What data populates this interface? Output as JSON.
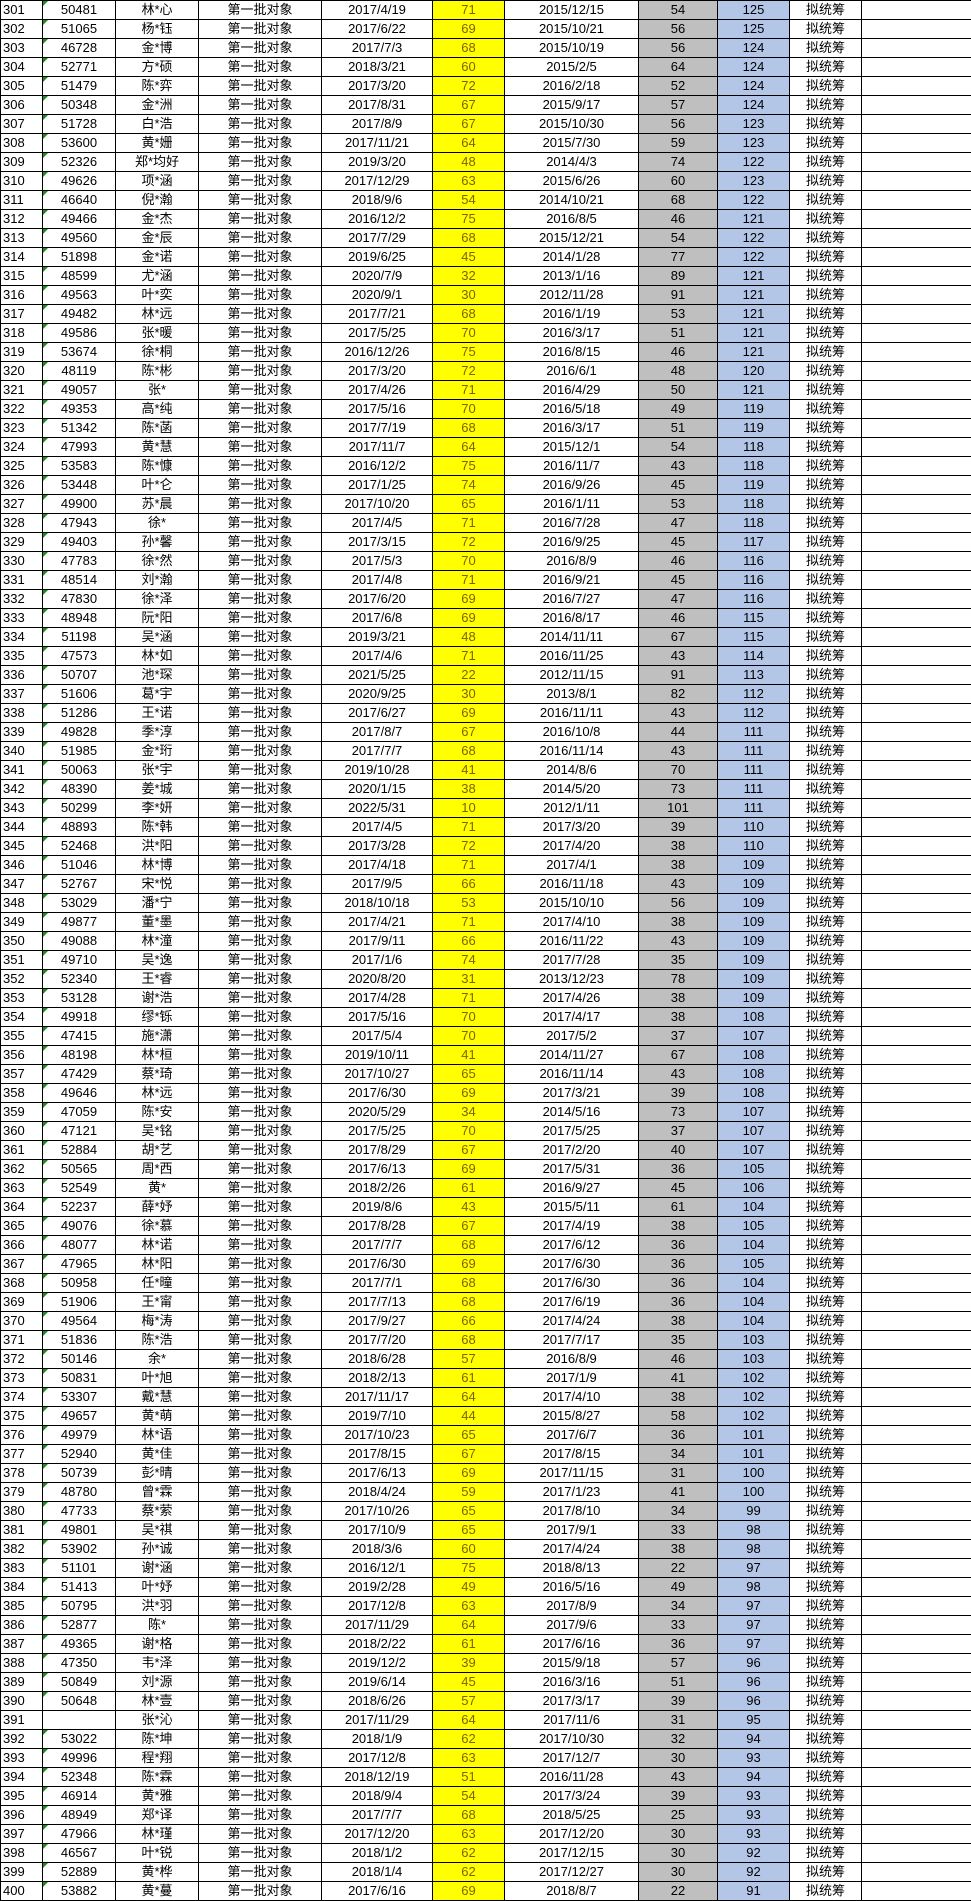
{
  "batch_label": "第一批对象",
  "status_label": "拟统筹",
  "colors": {
    "highlight_yellow": "#ffff00",
    "highlight_gray": "#bfbfbf",
    "highlight_blue": "#b4c6e7",
    "yellow_text": "#806000",
    "text_number_flag": "#1e8c1e"
  },
  "rows": [
    [
      "301",
      "50481",
      "林*心",
      "2017/4/19",
      "71",
      "2015/12/15",
      "54",
      "125"
    ],
    [
      "302",
      "51065",
      "杨*钰",
      "2017/6/22",
      "69",
      "2015/10/21",
      "56",
      "125"
    ],
    [
      "303",
      "46728",
      "金*博",
      "2017/7/3",
      "68",
      "2015/10/19",
      "56",
      "124"
    ],
    [
      "304",
      "52771",
      "方*硕",
      "2018/3/21",
      "60",
      "2015/2/5",
      "64",
      "124"
    ],
    [
      "305",
      "51479",
      "陈*弈",
      "2017/3/20",
      "72",
      "2016/2/18",
      "52",
      "124"
    ],
    [
      "306",
      "50348",
      "金*洲",
      "2017/8/31",
      "67",
      "2015/9/17",
      "57",
      "124"
    ],
    [
      "307",
      "51728",
      "白*浩",
      "2017/8/9",
      "67",
      "2015/10/30",
      "56",
      "123"
    ],
    [
      "308",
      "53600",
      "黄*姗",
      "2017/11/21",
      "64",
      "2015/7/30",
      "59",
      "123"
    ],
    [
      "309",
      "52326",
      "郑*均好",
      "2019/3/20",
      "48",
      "2014/4/3",
      "74",
      "122"
    ],
    [
      "310",
      "49626",
      "项*涵",
      "2017/12/29",
      "63",
      "2015/6/26",
      "60",
      "123"
    ],
    [
      "311",
      "46640",
      "倪*瀚",
      "2018/9/6",
      "54",
      "2014/10/21",
      "68",
      "122"
    ],
    [
      "312",
      "49466",
      "金*杰",
      "2016/12/2",
      "75",
      "2016/8/5",
      "46",
      "121"
    ],
    [
      "313",
      "49560",
      "金*辰",
      "2017/7/29",
      "68",
      "2015/12/21",
      "54",
      "122"
    ],
    [
      "314",
      "51898",
      "金*诺",
      "2019/6/25",
      "45",
      "2014/1/28",
      "77",
      "122"
    ],
    [
      "315",
      "48599",
      "尤*涵",
      "2020/7/9",
      "32",
      "2013/1/16",
      "89",
      "121"
    ],
    [
      "316",
      "49563",
      "叶*奕",
      "2020/9/1",
      "30",
      "2012/11/28",
      "91",
      "121"
    ],
    [
      "317",
      "49482",
      "林*远",
      "2017/7/21",
      "68",
      "2016/1/19",
      "53",
      "121"
    ],
    [
      "318",
      "49586",
      "张*暖",
      "2017/5/25",
      "70",
      "2016/3/17",
      "51",
      "121"
    ],
    [
      "319",
      "53674",
      "徐*桐",
      "2016/12/26",
      "75",
      "2016/8/15",
      "46",
      "121"
    ],
    [
      "320",
      "48119",
      "陈*彬",
      "2017/3/20",
      "72",
      "2016/6/1",
      "48",
      "120"
    ],
    [
      "321",
      "49057",
      "张*",
      "2017/4/26",
      "71",
      "2016/4/29",
      "50",
      "121"
    ],
    [
      "322",
      "49353",
      "高*纯",
      "2017/5/16",
      "70",
      "2016/5/18",
      "49",
      "119"
    ],
    [
      "323",
      "51342",
      "陈*菡",
      "2017/7/19",
      "68",
      "2016/3/17",
      "51",
      "119"
    ],
    [
      "324",
      "47993",
      "黄*慧",
      "2017/11/7",
      "64",
      "2015/12/1",
      "54",
      "118"
    ],
    [
      "325",
      "53583",
      "陈*慷",
      "2016/12/2",
      "75",
      "2016/11/7",
      "43",
      "118"
    ],
    [
      "326",
      "53448",
      "叶*仑",
      "2017/1/25",
      "74",
      "2016/9/26",
      "45",
      "119"
    ],
    [
      "327",
      "49900",
      "苏*晨",
      "2017/10/20",
      "65",
      "2016/1/11",
      "53",
      "118"
    ],
    [
      "328",
      "47943",
      "徐*",
      "2017/4/5",
      "71",
      "2016/7/28",
      "47",
      "118"
    ],
    [
      "329",
      "49403",
      "孙*馨",
      "2017/3/15",
      "72",
      "2016/9/25",
      "45",
      "117"
    ],
    [
      "330",
      "47783",
      "徐*然",
      "2017/5/3",
      "70",
      "2016/8/9",
      "46",
      "116"
    ],
    [
      "331",
      "48514",
      "刘*瀚",
      "2017/4/8",
      "71",
      "2016/9/21",
      "45",
      "116"
    ],
    [
      "332",
      "47830",
      "徐*泽",
      "2017/6/20",
      "69",
      "2016/7/27",
      "47",
      "116"
    ],
    [
      "333",
      "48948",
      "阮*阳",
      "2017/6/8",
      "69",
      "2016/8/17",
      "46",
      "115"
    ],
    [
      "334",
      "51198",
      "吴*涵",
      "2019/3/21",
      "48",
      "2014/11/11",
      "67",
      "115"
    ],
    [
      "335",
      "47573",
      "林*如",
      "2017/4/6",
      "71",
      "2016/11/25",
      "43",
      "114"
    ],
    [
      "336",
      "50707",
      "池*琛",
      "2021/5/25",
      "22",
      "2012/11/15",
      "91",
      "113"
    ],
    [
      "337",
      "51606",
      "葛*宇",
      "2020/9/25",
      "30",
      "2013/8/1",
      "82",
      "112"
    ],
    [
      "338",
      "51286",
      "王*诺",
      "2017/6/27",
      "69",
      "2016/11/11",
      "43",
      "112"
    ],
    [
      "339",
      "49828",
      "季*淳",
      "2017/8/7",
      "67",
      "2016/10/8",
      "44",
      "111"
    ],
    [
      "340",
      "51985",
      "金*珩",
      "2017/7/7",
      "68",
      "2016/11/14",
      "43",
      "111"
    ],
    [
      "341",
      "50063",
      "张*宇",
      "2019/10/28",
      "41",
      "2014/8/6",
      "70",
      "111"
    ],
    [
      "342",
      "48390",
      "姜*城",
      "2020/1/15",
      "38",
      "2014/5/20",
      "73",
      "111"
    ],
    [
      "343",
      "50299",
      "李*妍",
      "2022/5/31",
      "10",
      "2012/1/11",
      "101",
      "111"
    ],
    [
      "344",
      "48893",
      "陈*韩",
      "2017/4/5",
      "71",
      "2017/3/20",
      "39",
      "110"
    ],
    [
      "345",
      "52468",
      "洪*阳",
      "2017/3/28",
      "72",
      "2017/4/20",
      "38",
      "110"
    ],
    [
      "346",
      "51046",
      "林*博",
      "2017/4/18",
      "71",
      "2017/4/1",
      "38",
      "109"
    ],
    [
      "347",
      "52767",
      "宋*悦",
      "2017/9/5",
      "66",
      "2016/11/18",
      "43",
      "109"
    ],
    [
      "348",
      "53029",
      "潘*宁",
      "2018/10/18",
      "53",
      "2015/10/10",
      "56",
      "109"
    ],
    [
      "349",
      "49877",
      "董*墨",
      "2017/4/21",
      "71",
      "2017/4/10",
      "38",
      "109"
    ],
    [
      "350",
      "49088",
      "林*潼",
      "2017/9/11",
      "66",
      "2016/11/22",
      "43",
      "109"
    ],
    [
      "351",
      "49710",
      "吴*逸",
      "2017/1/6",
      "74",
      "2017/7/28",
      "35",
      "109"
    ],
    [
      "352",
      "52340",
      "王*睿",
      "2020/8/20",
      "31",
      "2013/12/23",
      "78",
      "109"
    ],
    [
      "353",
      "53128",
      "谢*浩",
      "2017/4/28",
      "71",
      "2017/4/26",
      "38",
      "109"
    ],
    [
      "354",
      "49918",
      "缪*铄",
      "2017/5/16",
      "70",
      "2017/4/17",
      "38",
      "108"
    ],
    [
      "355",
      "47415",
      "施*潇",
      "2017/5/4",
      "70",
      "2017/5/2",
      "37",
      "107"
    ],
    [
      "356",
      "48198",
      "林*桓",
      "2019/10/11",
      "41",
      "2014/11/27",
      "67",
      "108"
    ],
    [
      "357",
      "47429",
      "蔡*琦",
      "2017/10/27",
      "65",
      "2016/11/14",
      "43",
      "108"
    ],
    [
      "358",
      "49646",
      "林*远",
      "2017/6/30",
      "69",
      "2017/3/21",
      "39",
      "108"
    ],
    [
      "359",
      "47059",
      "陈*安",
      "2020/5/29",
      "34",
      "2014/5/16",
      "73",
      "107"
    ],
    [
      "360",
      "47121",
      "吴*铭",
      "2017/5/25",
      "70",
      "2017/5/25",
      "37",
      "107"
    ],
    [
      "361",
      "52884",
      "胡*艺",
      "2017/8/29",
      "67",
      "2017/2/20",
      "40",
      "107"
    ],
    [
      "362",
      "50565",
      "周*西",
      "2017/6/13",
      "69",
      "2017/5/31",
      "36",
      "105"
    ],
    [
      "363",
      "52549",
      "黄*",
      "2018/2/26",
      "61",
      "2016/9/27",
      "45",
      "106"
    ],
    [
      "364",
      "52237",
      "薛*妤",
      "2019/8/6",
      "43",
      "2015/5/11",
      "61",
      "104"
    ],
    [
      "365",
      "49076",
      "徐*慕",
      "2017/8/28",
      "67",
      "2017/4/19",
      "38",
      "105"
    ],
    [
      "366",
      "48077",
      "林*诺",
      "2017/7/7",
      "68",
      "2017/6/12",
      "36",
      "104"
    ],
    [
      "367",
      "47965",
      "林*阳",
      "2017/6/30",
      "69",
      "2017/6/30",
      "36",
      "105"
    ],
    [
      "368",
      "50958",
      "任*曈",
      "2017/7/1",
      "68",
      "2017/6/30",
      "36",
      "104"
    ],
    [
      "369",
      "51906",
      "王*甯",
      "2017/7/13",
      "68",
      "2017/6/19",
      "36",
      "104"
    ],
    [
      "370",
      "49564",
      "梅*涛",
      "2017/9/27",
      "66",
      "2017/4/24",
      "38",
      "104"
    ],
    [
      "371",
      "51836",
      "陈*浩",
      "2017/7/20",
      "68",
      "2017/7/17",
      "35",
      "103"
    ],
    [
      "372",
      "50146",
      "余*",
      "2018/6/28",
      "57",
      "2016/8/9",
      "46",
      "103"
    ],
    [
      "373",
      "50831",
      "叶*旭",
      "2018/2/13",
      "61",
      "2017/1/9",
      "41",
      "102"
    ],
    [
      "374",
      "53307",
      "戴*慧",
      "2017/11/17",
      "64",
      "2017/4/10",
      "38",
      "102"
    ],
    [
      "375",
      "49657",
      "黄*萌",
      "2019/7/10",
      "44",
      "2015/8/27",
      "58",
      "102"
    ],
    [
      "376",
      "49979",
      "林*语",
      "2017/10/23",
      "65",
      "2017/6/7",
      "36",
      "101"
    ],
    [
      "377",
      "52940",
      "黄*佳",
      "2017/8/15",
      "67",
      "2017/8/15",
      "34",
      "101"
    ],
    [
      "378",
      "50739",
      "彭*晴",
      "2017/6/13",
      "69",
      "2017/11/15",
      "31",
      "100"
    ],
    [
      "379",
      "48780",
      "曾*霖",
      "2018/4/24",
      "59",
      "2017/1/23",
      "41",
      "100"
    ],
    [
      "380",
      "47733",
      "蔡*萦",
      "2017/10/26",
      "65",
      "2017/8/10",
      "34",
      "99"
    ],
    [
      "381",
      "49801",
      "吴*祺",
      "2017/10/9",
      "65",
      "2017/9/1",
      "33",
      "98"
    ],
    [
      "382",
      "53902",
      "孙*诚",
      "2018/3/6",
      "60",
      "2017/4/24",
      "38",
      "98"
    ],
    [
      "383",
      "51101",
      "谢*涵",
      "2016/12/1",
      "75",
      "2018/8/13",
      "22",
      "97"
    ],
    [
      "384",
      "51413",
      "叶*妤",
      "2019/2/28",
      "49",
      "2016/5/16",
      "49",
      "98"
    ],
    [
      "385",
      "50795",
      "洪*羽",
      "2017/12/8",
      "63",
      "2017/8/9",
      "34",
      "97"
    ],
    [
      "386",
      "52877",
      "陈*",
      "2017/11/29",
      "64",
      "2017/9/6",
      "33",
      "97"
    ],
    [
      "387",
      "49365",
      "谢*格",
      "2018/2/22",
      "61",
      "2017/6/16",
      "36",
      "97"
    ],
    [
      "388",
      "47350",
      "韦*泽",
      "2019/12/2",
      "39",
      "2015/9/18",
      "57",
      "96"
    ],
    [
      "389",
      "50849",
      "刘*源",
      "2019/6/14",
      "45",
      "2016/3/16",
      "51",
      "96"
    ],
    [
      "390",
      "50648",
      "林*壹",
      "2018/6/26",
      "57",
      "2017/3/17",
      "39",
      "96"
    ],
    [
      "391",
      "",
      "张*沁",
      "2017/11/29",
      "64",
      "2017/11/6",
      "31",
      "95"
    ],
    [
      "392",
      "53022",
      "陈*坤",
      "2018/1/9",
      "62",
      "2017/10/30",
      "32",
      "94"
    ],
    [
      "393",
      "49996",
      "程*翔",
      "2017/12/8",
      "63",
      "2017/12/7",
      "30",
      "93"
    ],
    [
      "394",
      "52348",
      "陈*霖",
      "2018/12/19",
      "51",
      "2016/11/28",
      "43",
      "94"
    ],
    [
      "395",
      "46914",
      "黄*雅",
      "2018/9/4",
      "54",
      "2017/3/24",
      "39",
      "93"
    ],
    [
      "396",
      "48949",
      "郑*译",
      "2017/7/7",
      "68",
      "2018/5/25",
      "25",
      "93"
    ],
    [
      "397",
      "47966",
      "林*瑾",
      "2017/12/20",
      "63",
      "2017/12/20",
      "30",
      "93"
    ],
    [
      "398",
      "46567",
      "叶*锐",
      "2018/1/2",
      "62",
      "2017/12/15",
      "30",
      "92"
    ],
    [
      "399",
      "52889",
      "黄*桦",
      "2018/1/4",
      "62",
      "2017/12/27",
      "30",
      "92"
    ],
    [
      "400",
      "53882",
      "黄*蔓",
      "2017/6/16",
      "69",
      "2018/8/7",
      "22",
      "91"
    ]
  ]
}
